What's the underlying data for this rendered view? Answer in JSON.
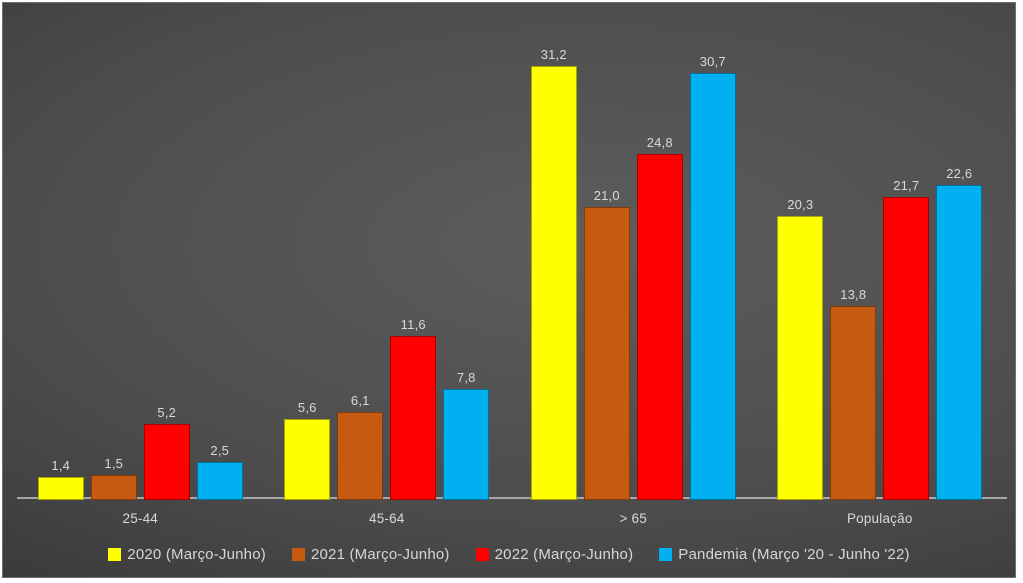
{
  "chart_data": {
    "type": "bar",
    "title": "",
    "xlabel": "",
    "ylabel": "",
    "ylim": [
      0,
      34
    ],
    "grid": false,
    "legend_position": "bottom",
    "value_format": "decimal-comma",
    "categories": [
      {
        "key": "25-44",
        "label": "25-44"
      },
      {
        "key": "45-64",
        "label": "45-64"
      },
      {
        "key": "65plus",
        "label": "> 65"
      },
      {
        "key": "populacao",
        "label": "População"
      }
    ],
    "series": [
      {
        "key": "2020",
        "name": "2020 (Março-Junho)",
        "color": "#FFFF00",
        "values": [
          1.4,
          5.6,
          31.2,
          20.3
        ],
        "labels": [
          "1,4",
          "5,6",
          "31,2",
          "20,3"
        ]
      },
      {
        "key": "2021",
        "name": "2021 (Março-Junho)",
        "color": "#C55A11",
        "values": [
          1.5,
          6.1,
          21.0,
          13.8
        ],
        "labels": [
          "1,5",
          "6,1",
          "21,0",
          "13,8"
        ]
      },
      {
        "key": "2022",
        "name": "2022 (Março-Junho)",
        "color": "#FF0000",
        "values": [
          5.2,
          11.6,
          24.8,
          21.7
        ],
        "labels": [
          "5,2",
          "11,6",
          "24,8",
          "21,7"
        ]
      },
      {
        "key": "pandemia",
        "name": "Pandemia (Março '20 - Junho '22)",
        "color": "#00B0F0",
        "values": [
          2.5,
          7.8,
          30.7,
          22.6
        ],
        "labels": [
          "2,5",
          "7,8",
          "30,7",
          "22,6"
        ]
      }
    ]
  },
  "colors": {
    "background_center": "#5d5d5d",
    "background_edge": "#282828",
    "axis_line": "#a6a6a6",
    "label_text": "#d9d9d9",
    "legend_text": "#d6d6d6"
  }
}
